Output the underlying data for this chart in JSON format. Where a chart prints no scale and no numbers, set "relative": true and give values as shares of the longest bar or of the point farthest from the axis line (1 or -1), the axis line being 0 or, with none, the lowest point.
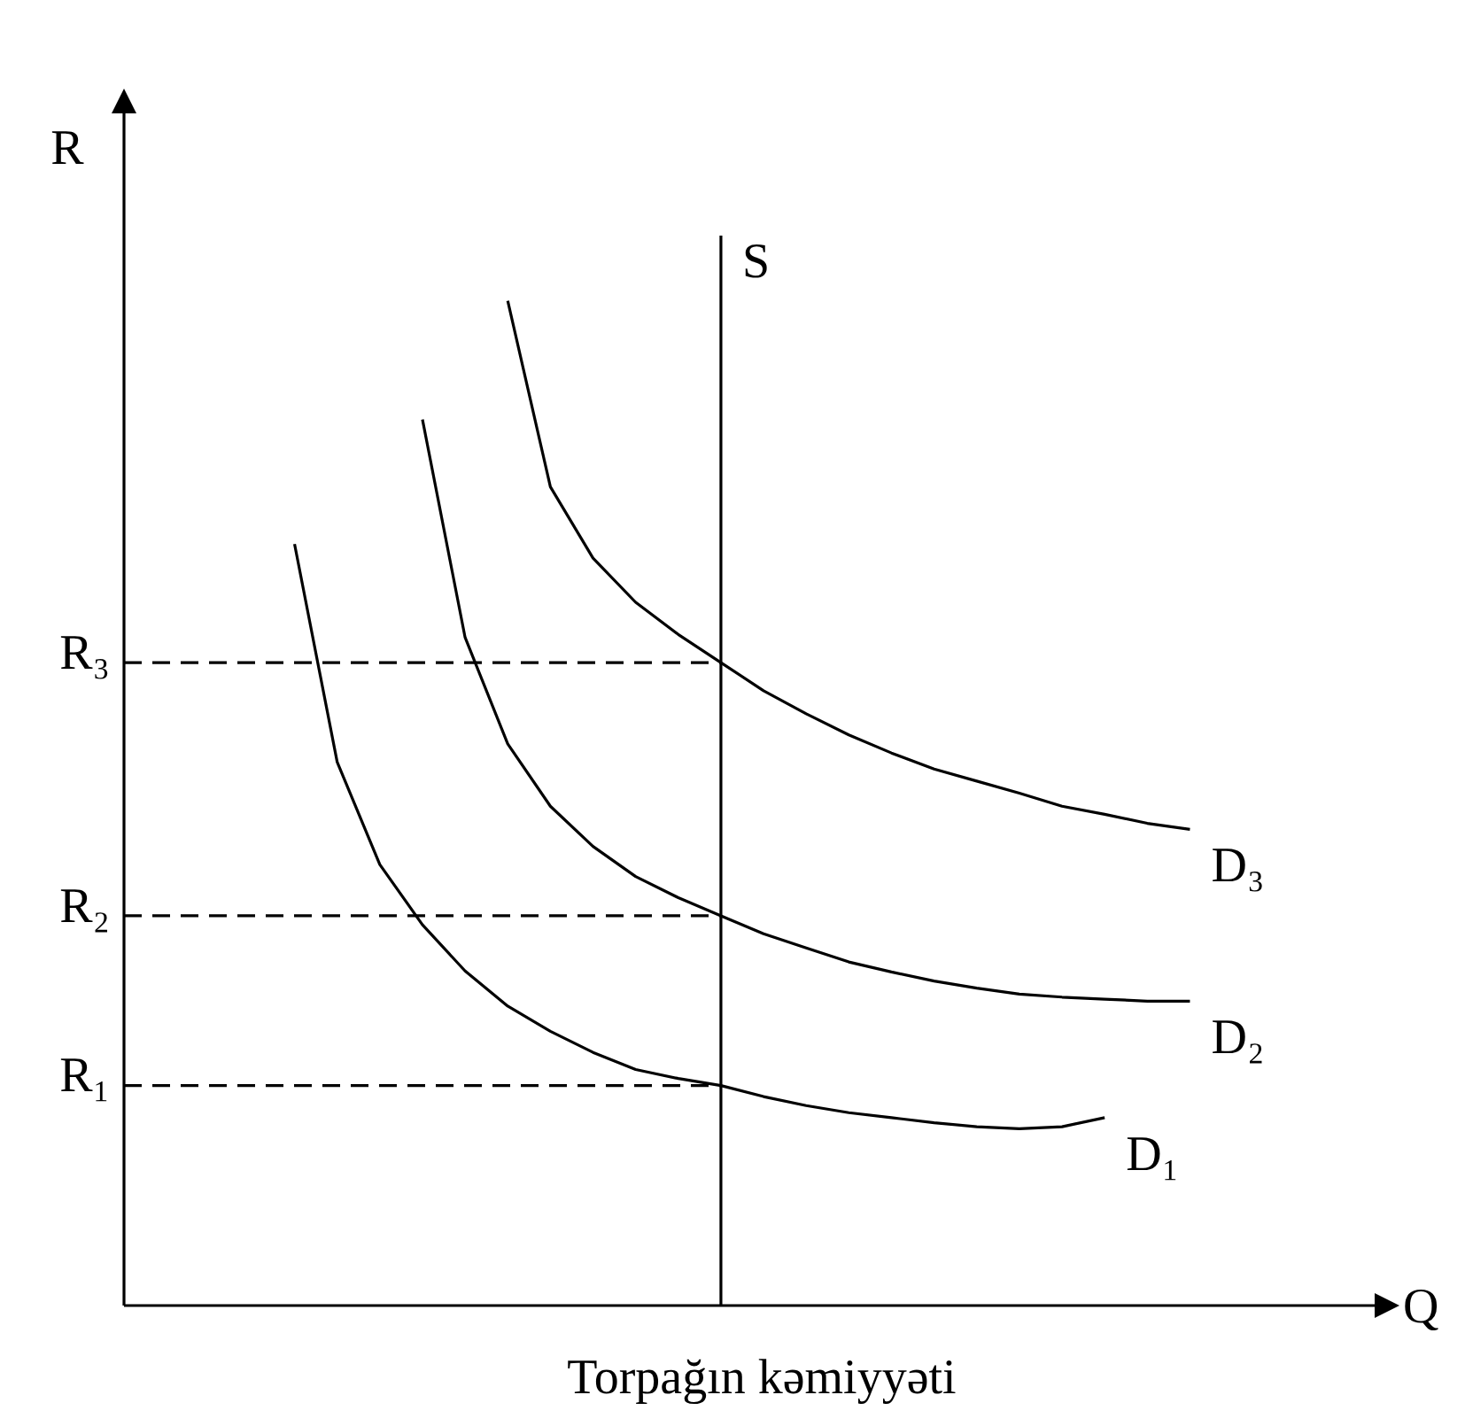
{
  "chart_data": {
    "type": "line",
    "relative": true,
    "xlabel": "Torpağın kəmiyyəti",
    "ylabel": "R",
    "marker": "none",
    "categories": [
      null,
      null,
      null,
      null,
      null,
      null,
      null,
      null,
      null,
      null,
      null,
      null,
      null,
      null,
      null,
      null,
      null,
      null,
      null,
      null,
      null,
      null,
      null,
      null,
      null,
      null,
      null,
      null,
      null,
      null
    ],
    "series": [
      {
        "name": "D₁",
        "color": "#000000",
        "values": [
          null,
          null,
          null,
          null,
          0.758,
          0.541,
          0.439,
          0.379,
          0.333,
          0.298,
          0.273,
          0.252,
          0.235,
          0.226,
          0.219,
          0.208,
          0.199,
          0.192,
          0.187,
          0.182,
          0.178,
          0.176,
          0.178,
          0.187,
          null,
          null,
          null,
          null,
          null,
          null
        ]
      },
      {
        "name": "D₂",
        "color": "#000000",
        "values": [
          null,
          null,
          null,
          null,
          null,
          null,
          null,
          0.882,
          0.665,
          0.559,
          0.497,
          0.457,
          0.427,
          0.406,
          0.388,
          0.37,
          0.356,
          0.342,
          0.332,
          0.323,
          0.316,
          0.31,
          0.307,
          0.305,
          0.303,
          0.303,
          null,
          null,
          null,
          null
        ]
      },
      {
        "name": "D₃",
        "color": "#000000",
        "values": [
          null,
          null,
          null,
          null,
          null,
          null,
          null,
          null,
          null,
          1,
          0.815,
          0.744,
          0.7,
          0.668,
          0.64,
          0.612,
          0.589,
          0.568,
          0.55,
          0.534,
          0.522,
          0.51,
          0.497,
          0.489,
          0.48,
          0.474,
          null,
          null,
          null,
          null
        ]
      },
      {
        "color": "#000000",
        "line_style": "dashed",
        "values": [
          0.64,
          0.64,
          0.64,
          0.64,
          0.64,
          0.64,
          0.64,
          0.64,
          0.64,
          0.64,
          0.64,
          0.64,
          0.64,
          0.64,
          0.64,
          null,
          null,
          null,
          null,
          null,
          null,
          null,
          null,
          null,
          null,
          null,
          null,
          null,
          null,
          null
        ]
      },
      {
        "color": "#000000",
        "line_style": "dashed",
        "values": [
          0.388,
          0.388,
          0.388,
          0.388,
          0.388,
          0.388,
          0.388,
          0.388,
          0.388,
          0.388,
          0.388,
          0.388,
          0.388,
          0.388,
          0.388,
          null,
          null,
          null,
          null,
          null,
          null,
          null,
          null,
          null,
          null,
          null,
          null,
          null,
          null,
          null
        ]
      },
      {
        "color": "#000000",
        "line_style": "dashed",
        "values": [
          0.219,
          0.219,
          0.219,
          0.219,
          0.219,
          0.219,
          0.219,
          0.219,
          0.219,
          0.219,
          0.219,
          0.219,
          0.219,
          0.219,
          0.219,
          null,
          null,
          null,
          null,
          null,
          null,
          null,
          null,
          null,
          null,
          null,
          null,
          null,
          null,
          null
        ]
      }
    ],
    "annotations": [
      "R₃",
      "R₂",
      "R₁",
      "S",
      "Q"
    ]
  }
}
